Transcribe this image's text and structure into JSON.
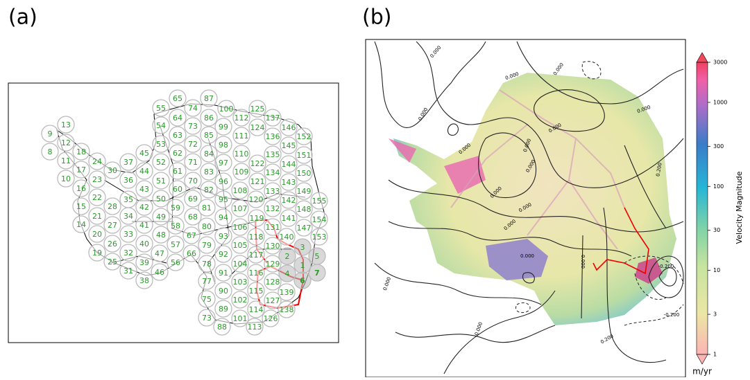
{
  "panels": {
    "a": "(a)",
    "b": "(b)"
  },
  "nodes": [
    "65",
    "87",
    "55",
    "74",
    "100",
    "125",
    "64",
    "86",
    "112",
    "137",
    "13",
    "54",
    "73",
    "99",
    "124",
    "146",
    "9",
    "63",
    "85",
    "111",
    "136",
    "152",
    "12",
    "53",
    "72",
    "98",
    "145",
    "8",
    "18",
    "45",
    "62",
    "84",
    "110",
    "135",
    "151",
    "11",
    "24",
    "37",
    "52",
    "71",
    "97",
    "122",
    "144",
    "17",
    "30",
    "44",
    "61",
    "83",
    "109",
    "134",
    "150",
    "10",
    "23",
    "36",
    "51",
    "70",
    "96",
    "121",
    "143",
    "16",
    "22",
    "35",
    "43",
    "60",
    "82",
    "108",
    "133",
    "149",
    "15",
    "28",
    "42",
    "50",
    "69",
    "95",
    "120",
    "142",
    "155",
    "59",
    "81",
    "107",
    "132",
    "148",
    "21",
    "34",
    "49",
    "68",
    "94",
    "119",
    "141",
    "154",
    "14",
    "27",
    "41",
    "58",
    "80",
    "106",
    "131",
    "147",
    "20",
    "33",
    "48",
    "67",
    "93",
    "118",
    "140",
    "153",
    "26",
    "40",
    "57",
    "79",
    "105",
    "130",
    "3",
    "19",
    "32",
    "47",
    "66",
    "92",
    "117",
    "2",
    "5",
    "25",
    "39",
    "56",
    "78",
    "104",
    "129",
    "1",
    "31",
    "46",
    "91",
    "116",
    "4",
    "7",
    "38",
    "77",
    "103",
    "128",
    "6",
    "90",
    "115",
    "139",
    "75",
    "102",
    "127",
    "89",
    "114",
    "138",
    "73",
    "101",
    "126",
    "88",
    "113"
  ],
  "contour_labels": [
    "0.000",
    "0.000",
    "0.000",
    "0.000",
    "0.000",
    "0.000",
    "0.000",
    "0.000",
    "0.000",
    "0.000",
    "0.000",
    "0.000",
    "0.000",
    "0.000",
    "0.000",
    "0.000",
    "-0.200",
    "0.200",
    "0.200",
    "-0.200"
  ],
  "colorbar": {
    "label": "Velocity Magnitude",
    "unit": "m/yr",
    "lim": [
      1,
      3000
    ],
    "ticks": [
      1,
      3,
      10,
      30,
      100,
      300,
      1000,
      3000
    ],
    "log": true
  }
}
